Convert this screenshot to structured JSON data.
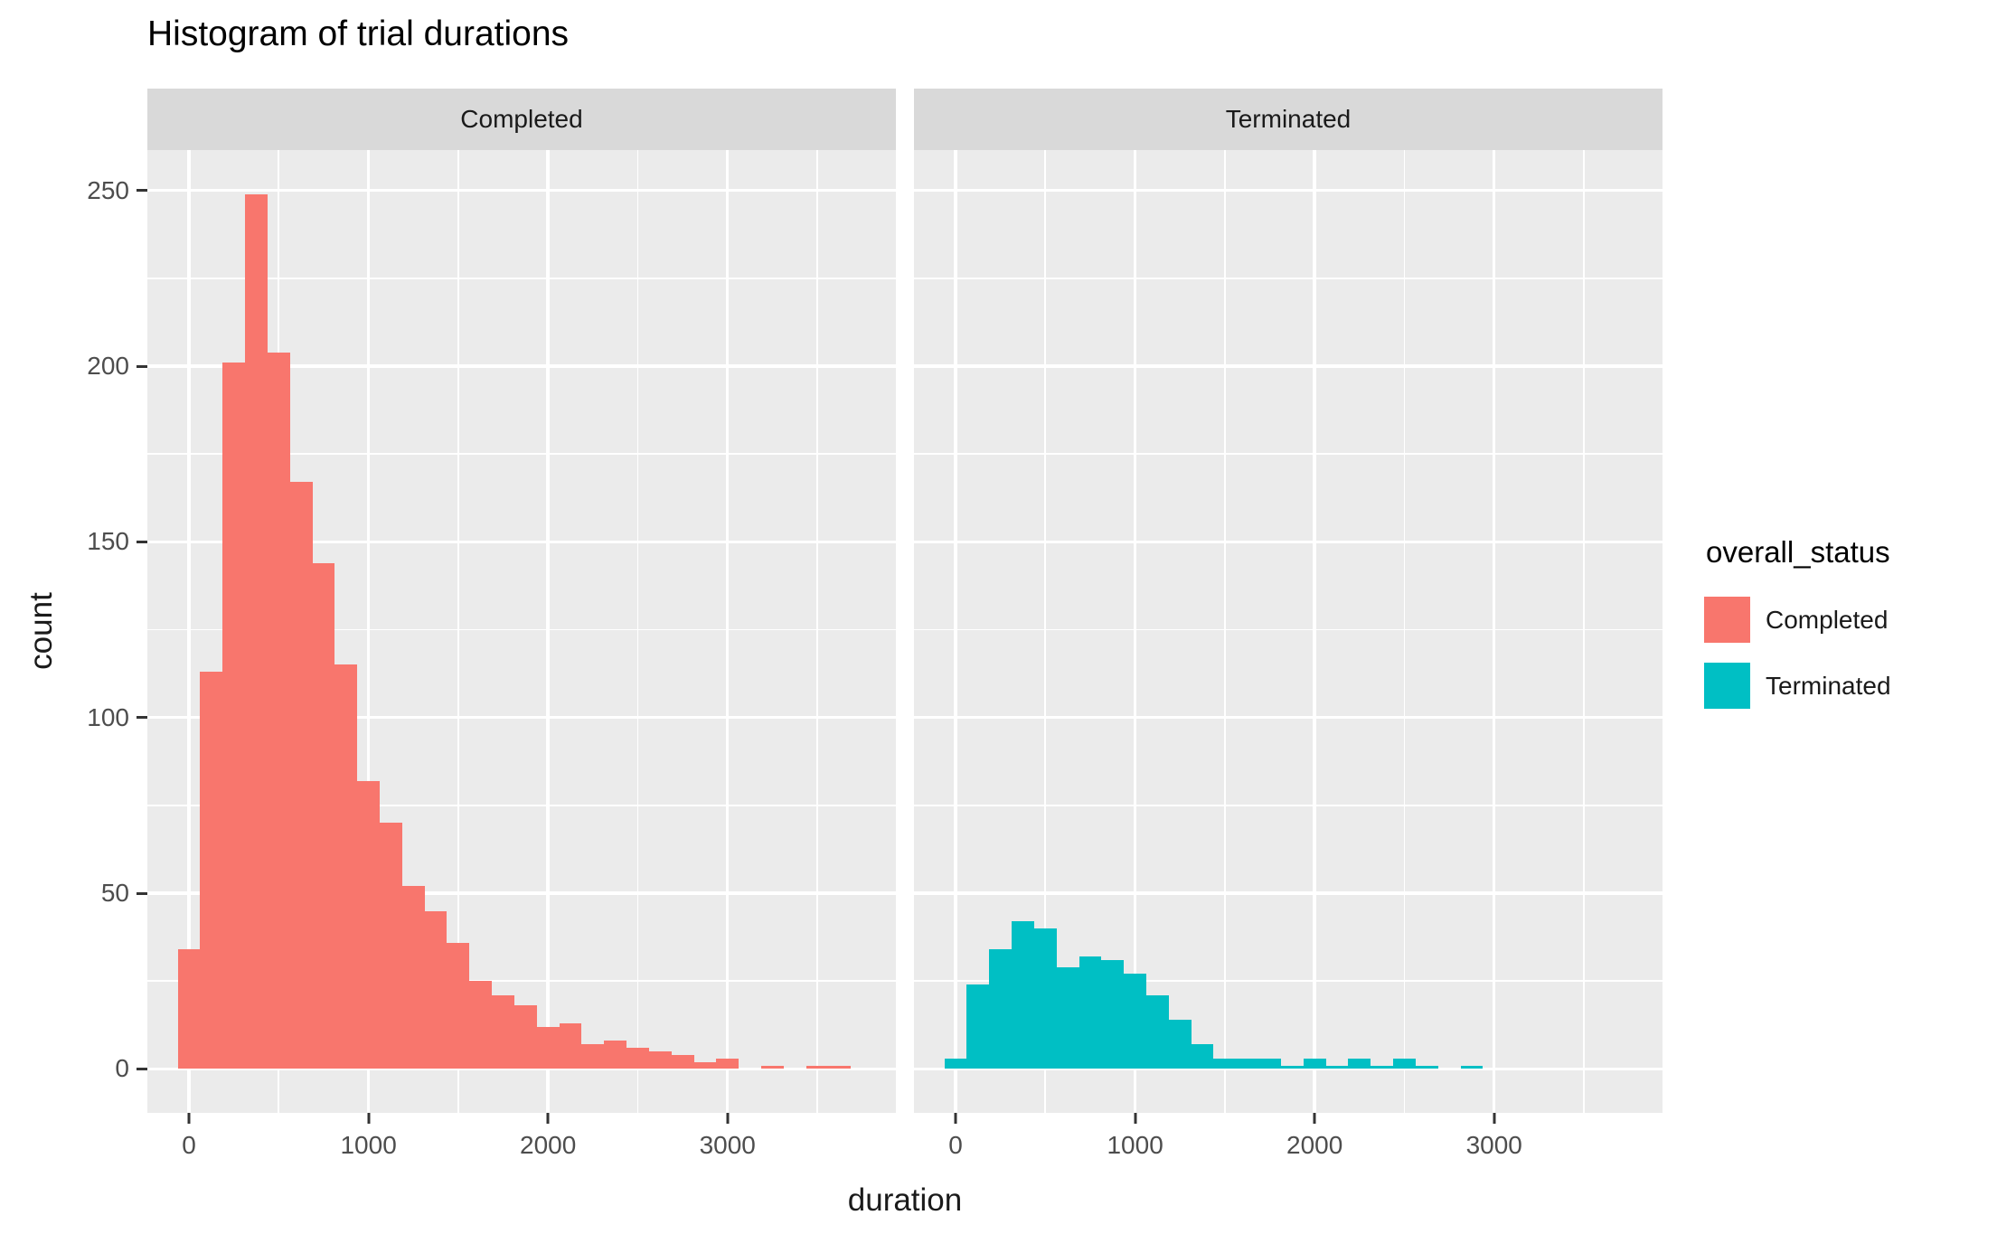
{
  "title": "Histogram of trial durations",
  "axes": {
    "x_label": "duration",
    "y_label": "count",
    "x_ticks": [
      "0",
      "1000",
      "2000",
      "3000"
    ],
    "y_ticks": [
      "0",
      "50",
      "100",
      "150",
      "200",
      "250"
    ]
  },
  "legend": {
    "title": "overall_status",
    "items": [
      {
        "label": "Completed",
        "color": "#F8766D"
      },
      {
        "label": "Terminated",
        "color": "#00BFC4"
      }
    ]
  },
  "facets": [
    "Completed",
    "Terminated"
  ],
  "colors": {
    "panel_background": "#EBEBEB",
    "strip_background": "#D9D9D9",
    "gridline": "#FFFFFF",
    "axis_text": "#4D4D4D",
    "tick_mark": "#333333",
    "completed": "#F8766D",
    "terminated": "#00BFC4"
  },
  "chart_data": {
    "type": "bar",
    "subtype": "faceted-histogram",
    "title": "Histogram of trial durations",
    "xlabel": "duration",
    "ylabel": "count",
    "facet_variable": "overall_status",
    "facets": [
      "Completed",
      "Terminated"
    ],
    "bin_width": 125,
    "x_tick_values": [
      0,
      1000,
      2000,
      3000
    ],
    "y_tick_values": [
      0,
      50,
      100,
      150,
      200,
      250
    ],
    "x_minor_step": 500,
    "y_minor_step": 25,
    "xlim": [
      -232,
      3938
    ],
    "ylim": [
      -12.5,
      261.5
    ],
    "grid": true,
    "legend_position": "right",
    "series": [
      {
        "name": "Completed",
        "color": "#F8766D",
        "bin_centers": [
          0,
          125,
          250,
          375,
          500,
          625,
          750,
          875,
          1000,
          1125,
          1250,
          1375,
          1500,
          1625,
          1750,
          1875,
          2000,
          2125,
          2250,
          2375,
          2500,
          2625,
          2750,
          2875,
          3000,
          3125,
          3250,
          3375,
          3500,
          3625
        ],
        "counts": [
          34,
          113,
          201,
          249,
          204,
          167,
          144,
          115,
          82,
          70,
          52,
          45,
          36,
          25,
          21,
          18,
          12,
          13,
          7,
          8,
          6,
          5,
          4,
          2,
          3,
          0,
          1,
          0,
          1,
          1
        ]
      },
      {
        "name": "Terminated",
        "color": "#00BFC4",
        "bin_centers": [
          0,
          125,
          250,
          375,
          500,
          625,
          750,
          875,
          1000,
          1125,
          1250,
          1375,
          1500,
          1625,
          1750,
          1875,
          2000,
          2125,
          2250,
          2375,
          2500,
          2625,
          2750,
          2875
        ],
        "counts": [
          3,
          24,
          34,
          42,
          40,
          29,
          32,
          31,
          27,
          21,
          14,
          7,
          3,
          3,
          3,
          1,
          3,
          1,
          3,
          1,
          3,
          1,
          0,
          1
        ]
      }
    ]
  }
}
